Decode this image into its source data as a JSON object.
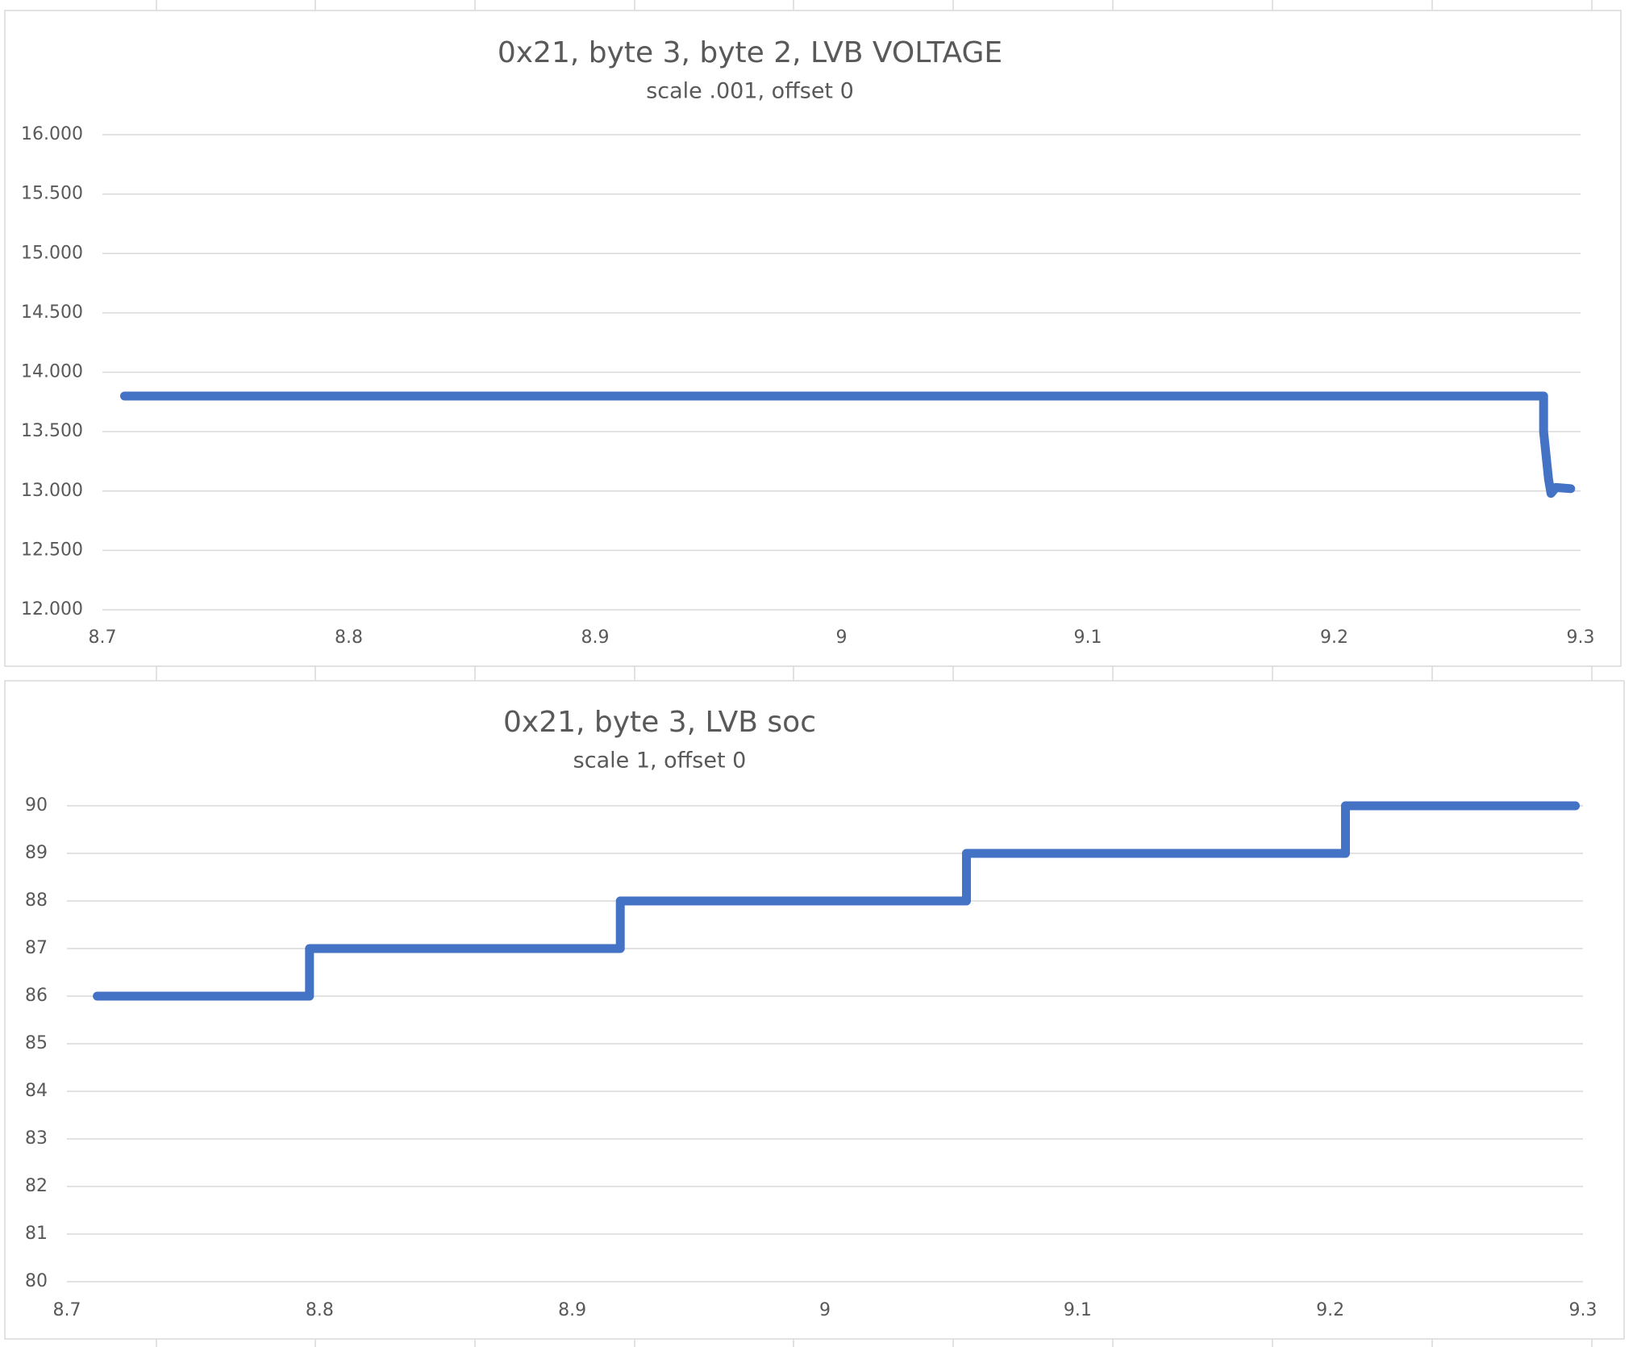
{
  "chart_data": [
    {
      "type": "line",
      "title": "0x21, byte 3, byte 2, LVB VOLTAGE",
      "subtitle": "scale .001, offset 0",
      "x": [
        8.709,
        9.285,
        9.285,
        9.286,
        9.287,
        9.288,
        9.29,
        9.296
      ],
      "values": [
        13.8,
        13.8,
        13.5,
        13.3,
        13.1,
        12.98,
        13.03,
        13.02
      ],
      "color": "#4472c4",
      "xlim": [
        8.7,
        9.3
      ],
      "xticks": [
        8.7,
        8.8,
        8.9,
        9,
        9.1,
        9.2,
        9.3
      ],
      "ylim": [
        12,
        16
      ],
      "yticks": [
        {
          "value": 12,
          "label": "12.000"
        },
        {
          "value": 12.5,
          "label": "12.500"
        },
        {
          "value": 13,
          "label": "13.000"
        },
        {
          "value": 13.5,
          "label": "13.500"
        },
        {
          "value": 14,
          "label": "14.000"
        },
        {
          "value": 14.5,
          "label": "14.500"
        },
        {
          "value": 15,
          "label": "15.000"
        },
        {
          "value": 15.5,
          "label": "15.500"
        },
        {
          "value": 16,
          "label": "16.000"
        }
      ],
      "grid": true
    },
    {
      "type": "line",
      "title": "0x21, byte 3, LVB soc",
      "subtitle": "scale 1, offset 0",
      "x": [
        8.712,
        8.796,
        8.796,
        8.919,
        8.919,
        9.056,
        9.056,
        9.206,
        9.206,
        9.297
      ],
      "values": [
        86,
        86,
        87,
        87,
        88,
        88,
        89,
        89,
        90,
        90
      ],
      "color": "#4472c4",
      "xlim": [
        8.7,
        9.3
      ],
      "xticks": [
        8.7,
        8.8,
        8.9,
        9,
        9.1,
        9.2,
        9.3
      ],
      "ylim": [
        80,
        90
      ],
      "yticks": [
        80,
        81,
        82,
        83,
        84,
        85,
        86,
        87,
        88,
        89,
        90
      ],
      "grid": true
    }
  ]
}
